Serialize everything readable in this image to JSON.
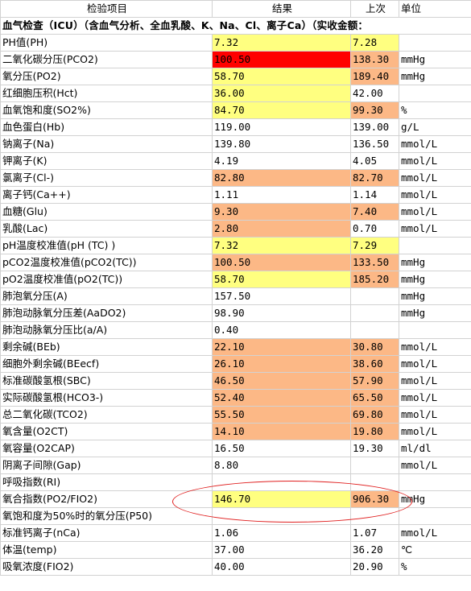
{
  "header": {
    "item": "检验项目",
    "result": "结果",
    "previous": "上次",
    "unit": "单位"
  },
  "section_title": "血气检查（ICU）（含血气分析、全血乳酸、K、Na、Cl、离子Ca）（实收金额：",
  "colors": {
    "yellow": "#ffff80",
    "orange": "#fcb886",
    "red": "#ff0000",
    "annotation": "#e02020"
  },
  "rows": [
    {
      "name": "PH值(PH)",
      "result": "7.32",
      "previous": "7.28",
      "unit": "",
      "rh": "yellow",
      "ph": "yellow"
    },
    {
      "name": "二氧化碳分压(PCO2)",
      "result": "100.50",
      "previous": "138.30",
      "unit": "mmHg",
      "rh": "red",
      "ph": "orange"
    },
    {
      "name": "氧分压(PO2)",
      "result": "58.70",
      "previous": "189.40",
      "unit": "mmHg",
      "rh": "yellow",
      "ph": "orange"
    },
    {
      "name": "红细胞压积(Hct)",
      "result": "36.00",
      "previous": "42.00",
      "unit": "",
      "rh": "yellow",
      "ph": ""
    },
    {
      "name": "血氧饱和度(SO2%)",
      "result": "84.70",
      "previous": "99.30",
      "unit": "%",
      "rh": "yellow",
      "ph": "orange"
    },
    {
      "name": "血色蛋白(Hb)",
      "result": "119.00",
      "previous": "139.00",
      "unit": "g/L",
      "rh": "",
      "ph": ""
    },
    {
      "name": "钠离子(Na)",
      "result": "139.80",
      "previous": "136.50",
      "unit": "mmol/L",
      "rh": "",
      "ph": ""
    },
    {
      "name": "钾离子(K)",
      "result": "4.19",
      "previous": "4.05",
      "unit": "mmol/L",
      "rh": "",
      "ph": ""
    },
    {
      "name": "氯离子(Cl-)",
      "result": "82.80",
      "previous": "82.70",
      "unit": "mmol/L",
      "rh": "orange",
      "ph": "orange"
    },
    {
      "name": "离子钙(Ca++)",
      "result": "1.11",
      "previous": "1.14",
      "unit": "mmol/L",
      "rh": "",
      "ph": ""
    },
    {
      "name": "血糖(Glu)",
      "result": "9.30",
      "previous": "7.40",
      "unit": "mmol/L",
      "rh": "orange",
      "ph": "orange"
    },
    {
      "name": "乳酸(Lac)",
      "result": "2.80",
      "previous": "0.70",
      "unit": "mmol/L",
      "rh": "orange",
      "ph": ""
    },
    {
      "name": "pH温度校准值(pH (TC) )",
      "result": "7.32",
      "previous": "7.29",
      "unit": "",
      "rh": "yellow",
      "ph": "yellow"
    },
    {
      "name": "pCO2温度校准值(pCO2(TC))",
      "result": "100.50",
      "previous": "133.50",
      "unit": "mmHg",
      "rh": "orange",
      "ph": "orange"
    },
    {
      "name": "pO2温度校准值(pO2(TC))",
      "result": "58.70",
      "previous": "185.20",
      "unit": "mmHg",
      "rh": "yellow",
      "ph": "orange"
    },
    {
      "name": "肺泡氧分压(A)",
      "result": "157.50",
      "previous": "",
      "unit": "mmHg",
      "rh": "",
      "ph": ""
    },
    {
      "name": "肺泡动脉氧分压差(AaDO2)",
      "result": "98.90",
      "previous": "",
      "unit": "mmHg",
      "rh": "",
      "ph": ""
    },
    {
      "name": "肺泡动脉氧分压比(a/A)",
      "result": "0.40",
      "previous": "",
      "unit": "",
      "rh": "",
      "ph": ""
    },
    {
      "name": "剩余碱(BEb)",
      "result": "22.10",
      "previous": "30.80",
      "unit": "mmol/L",
      "rh": "orange",
      "ph": "orange"
    },
    {
      "name": "细胞外剩余碱(BEecf)",
      "result": "26.10",
      "previous": "38.60",
      "unit": "mmol/L",
      "rh": "orange",
      "ph": "orange"
    },
    {
      "name": "标准碳酸氢根(SBC)",
      "result": "46.50",
      "previous": "57.90",
      "unit": "mmol/L",
      "rh": "orange",
      "ph": "orange"
    },
    {
      "name": "实际碳酸氢根(HCO3-)",
      "result": "52.40",
      "previous": "65.50",
      "unit": "mmol/L",
      "rh": "orange",
      "ph": "orange"
    },
    {
      "name": "总二氧化碳(TCO2)",
      "result": "55.50",
      "previous": "69.80",
      "unit": "mmol/L",
      "rh": "orange",
      "ph": "orange"
    },
    {
      "name": "氧含量(O2CT)",
      "result": "14.10",
      "previous": "19.80",
      "unit": "mmol/L",
      "rh": "orange",
      "ph": "orange"
    },
    {
      "name": "氧容量(O2CAP)",
      "result": "16.50",
      "previous": "19.30",
      "unit": "ml/dl",
      "rh": "",
      "ph": ""
    },
    {
      "name": "阴离子间隙(Gap)",
      "result": "8.80",
      "previous": "",
      "unit": "mmol/L",
      "rh": "",
      "ph": ""
    },
    {
      "name": "呼吸指数(RI)",
      "result": "",
      "previous": "",
      "unit": "",
      "rh": "",
      "ph": ""
    },
    {
      "name": "氧合指数(PO2/FIO2)",
      "result": "146.70",
      "previous": "906.30",
      "unit": "mmHg",
      "rh": "yellow",
      "ph": "orange"
    },
    {
      "name": "氧饱和度为50%时的氧分压(P50)",
      "result": "",
      "previous": "",
      "unit": "",
      "rh": "",
      "ph": ""
    },
    {
      "name": "标准钙离子(nCa)",
      "result": "1.06",
      "previous": "1.07",
      "unit": "mmol/L",
      "rh": "",
      "ph": ""
    },
    {
      "name": "体温(temp)",
      "result": "37.00",
      "previous": "36.20",
      "unit": "℃",
      "rh": "",
      "ph": ""
    },
    {
      "name": "吸氧浓度(FIO2)",
      "result": "40.00",
      "previous": "20.90",
      "unit": "%",
      "rh": "",
      "ph": ""
    }
  ]
}
